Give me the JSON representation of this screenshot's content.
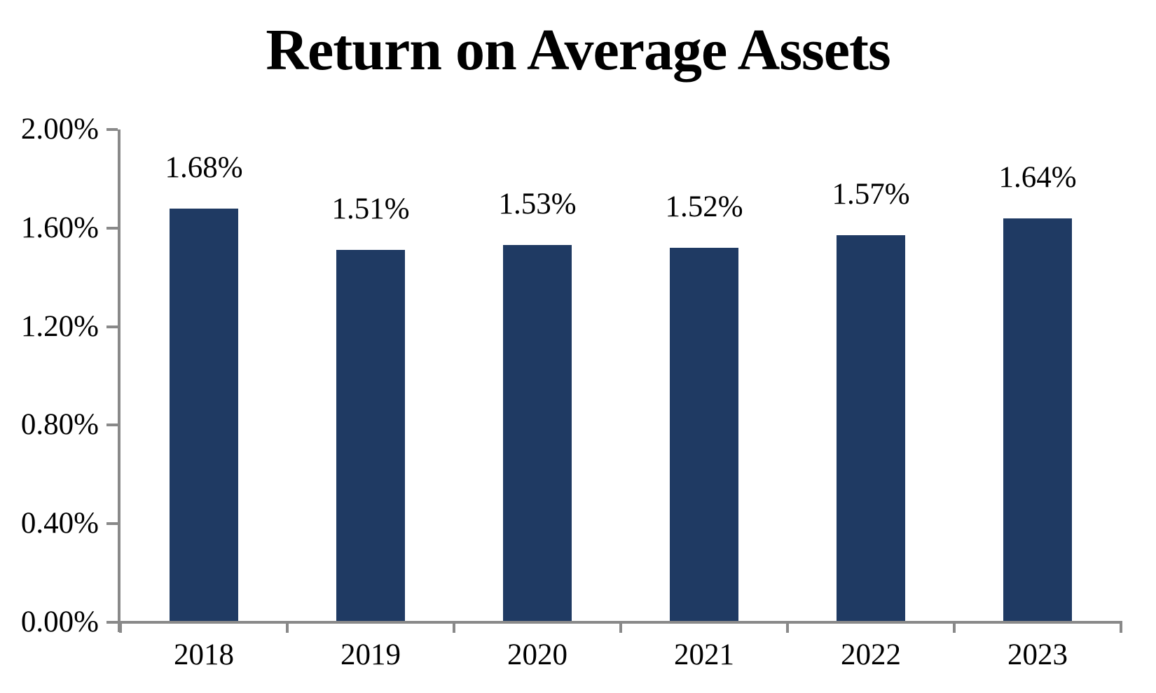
{
  "chart_data": {
    "type": "bar",
    "title": "Return on Average Assets",
    "categories": [
      "2018",
      "2019",
      "2020",
      "2021",
      "2022",
      "2023"
    ],
    "values": [
      1.68,
      1.51,
      1.53,
      1.52,
      1.57,
      1.64
    ],
    "data_labels": [
      "1.68%",
      "1.51%",
      "1.53%",
      "1.52%",
      "1.57%",
      "1.64%"
    ],
    "y_ticks": [
      {
        "value": 0.0,
        "label": "0.00%"
      },
      {
        "value": 0.4,
        "label": "0.40%"
      },
      {
        "value": 0.8,
        "label": "0.80%"
      },
      {
        "value": 1.2,
        "label": "1.20%"
      },
      {
        "value": 1.6,
        "label": "1.60%"
      },
      {
        "value": 2.0,
        "label": "2.00%"
      }
    ],
    "ylim": [
      0,
      2.0
    ],
    "xlabel": "",
    "ylabel": "",
    "grid": false,
    "legend": "none",
    "bar_color": "#1f3a63",
    "axis_color": "#898989",
    "text_color": "#000000",
    "background_color": "#ffffff"
  }
}
